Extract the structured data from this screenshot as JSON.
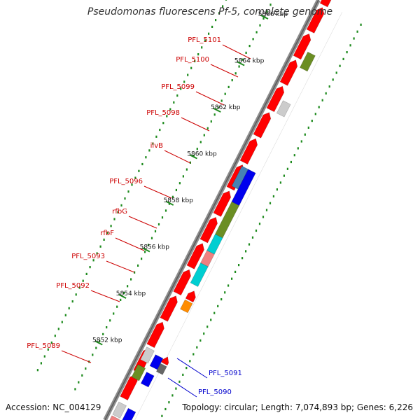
{
  "title": "Pseudomonas fluorescens Pf-5, complete genome",
  "footer": {
    "accession": "Accession: NC_004129",
    "topology": "Topology: circular; Length: 7,074,893 bp; Genes: 6,226"
  },
  "colors": {
    "backbone": "#8c8c8c",
    "dots": "#1d8a1d",
    "label_red": "#cc0000",
    "label_blue": "#0000cc",
    "red": "#ff0000",
    "green": "#6b8e23",
    "gray": "#cccccc",
    "dark_gray": "#666666",
    "blue": "#0000ee",
    "steel": "#4682b4",
    "cyan": "#00ced1",
    "pink": "#f08080",
    "orange": "#ff8c00"
  },
  "scale": {
    "unit": "kbp",
    "ticks": [
      {
        "kbp": 5852,
        "label": "5852 kbp"
      },
      {
        "kbp": 5854,
        "label": "5854 kbp"
      },
      {
        "kbp": 5856,
        "label": "5856 kbp"
      },
      {
        "kbp": 5858,
        "label": "5858 kbp"
      },
      {
        "kbp": 5860,
        "label": "5860 kbp"
      },
      {
        "kbp": 5862,
        "label": "5862 kbp"
      },
      {
        "kbp": 5864,
        "label": "5864 kbp"
      },
      {
        "kbp": 5866,
        "label": "5866 kbp"
      }
    ]
  },
  "genes": [
    {
      "id": "PFL_5089",
      "label": "PFL_5089",
      "color": "dark_gray",
      "side": "left"
    },
    {
      "id": "PFL_5090",
      "label": "PFL_5090",
      "color": "green",
      "side": "right"
    },
    {
      "id": "PFL_5091",
      "label": "PFL_5091",
      "color": "gray",
      "side": "right"
    },
    {
      "id": "PFL_5092",
      "label": "PFL_5092",
      "color": "orange",
      "side": "left"
    },
    {
      "id": "PFL_5093",
      "label": "PFL_5093",
      "color": "cyan",
      "side": "left"
    },
    {
      "id": "rfbF",
      "label": "rfbF",
      "color": "pink",
      "side": "left"
    },
    {
      "id": "rfbG",
      "label": "rfbG",
      "color": "cyan",
      "side": "left"
    },
    {
      "id": "PFL_5096",
      "label": "PFL_5096",
      "color": "green",
      "side": "left"
    },
    {
      "id": "ilvB",
      "label": "ilvB",
      "color": "blue",
      "side": "left"
    },
    {
      "id": "PFL_5098",
      "label": "PFL_5098",
      "color": "red",
      "side": "left"
    },
    {
      "id": "PFL_5099",
      "label": "PFL_5099",
      "color": "red",
      "side": "left"
    },
    {
      "id": "PFL_5100",
      "label": "PFL_5100",
      "color": "gray",
      "side": "left"
    },
    {
      "id": "PFL_5101",
      "label": "PFL_5101",
      "color": "red",
      "side": "left"
    }
  ]
}
